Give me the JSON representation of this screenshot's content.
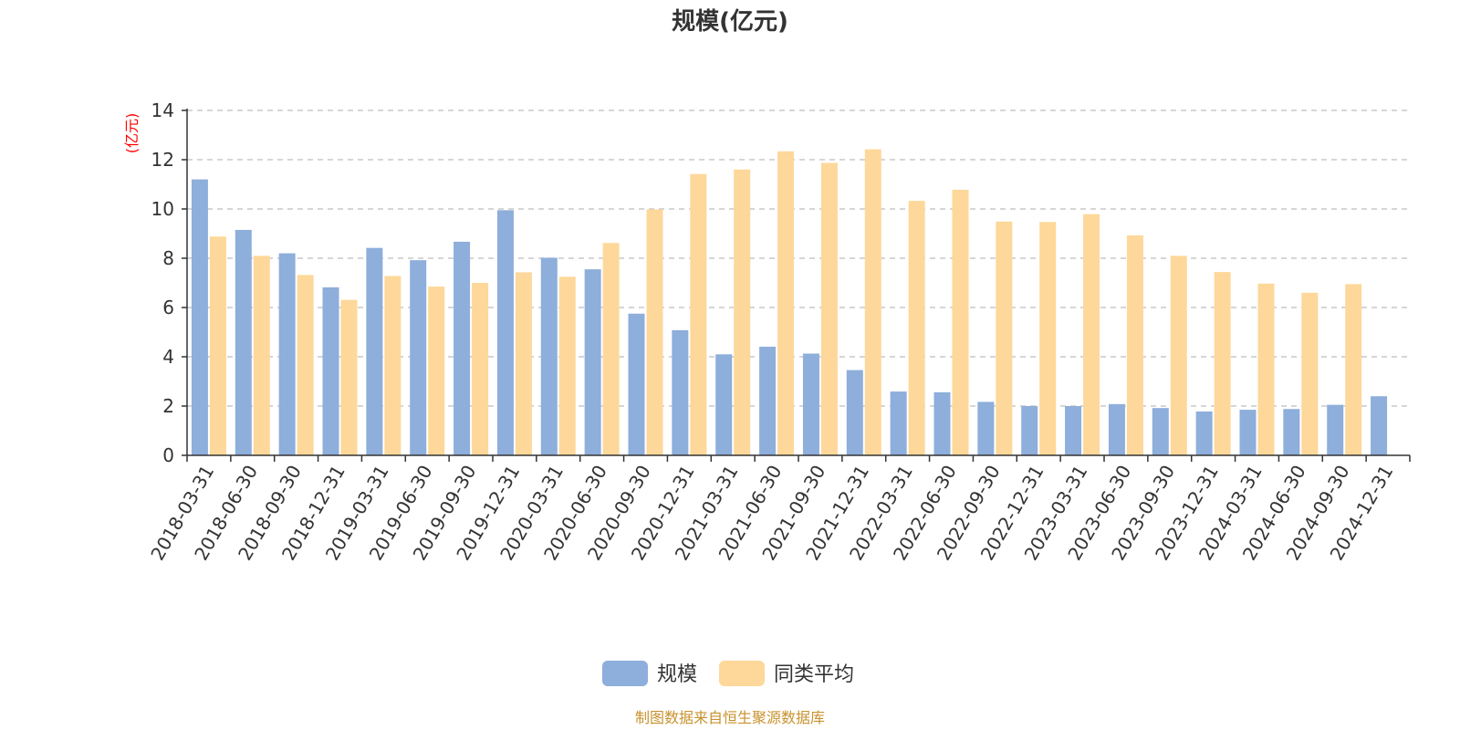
{
  "chart_data": {
    "type": "bar",
    "title": "规模(亿元)",
    "ylabel": "(亿元)",
    "xlabel": "",
    "ylim": [
      0,
      14
    ],
    "yticks": [
      0,
      2,
      4,
      6,
      8,
      10,
      12,
      14
    ],
    "grid": true,
    "legend_position": "bottom",
    "categories": [
      "2018-03-31",
      "2018-06-30",
      "2018-09-30",
      "2018-12-31",
      "2019-03-31",
      "2019-06-30",
      "2019-09-30",
      "2019-12-31",
      "2020-03-31",
      "2020-06-30",
      "2020-09-30",
      "2020-12-31",
      "2021-03-31",
      "2021-06-30",
      "2021-09-30",
      "2021-12-31",
      "2022-03-31",
      "2022-06-30",
      "2022-09-30",
      "2022-12-31",
      "2023-03-31",
      "2023-06-30",
      "2023-09-30",
      "2023-12-31",
      "2024-03-31",
      "2024-06-30",
      "2024-09-30",
      "2024-12-31"
    ],
    "series": [
      {
        "name": "规模",
        "color": "#8eaedb",
        "values": [
          11.2,
          9.15,
          8.2,
          6.82,
          8.42,
          7.92,
          8.67,
          9.95,
          8.02,
          7.55,
          5.75,
          5.08,
          4.1,
          4.41,
          4.13,
          3.46,
          2.59,
          2.56,
          2.17,
          2.0,
          2.0,
          2.08,
          1.92,
          1.78,
          1.85,
          1.88,
          2.05,
          2.4
        ]
      },
      {
        "name": "同类平均",
        "color": "#fdd89a",
        "values": [
          8.88,
          8.1,
          7.32,
          6.31,
          7.28,
          6.85,
          7.0,
          7.43,
          7.25,
          8.62,
          9.98,
          11.42,
          11.6,
          12.34,
          11.87,
          12.42,
          10.33,
          10.78,
          9.49,
          9.47,
          9.79,
          8.93,
          8.1,
          7.44,
          6.97,
          6.6,
          6.95,
          null
        ]
      }
    ]
  },
  "source_note": "制图数据来自恒生聚源数据库"
}
